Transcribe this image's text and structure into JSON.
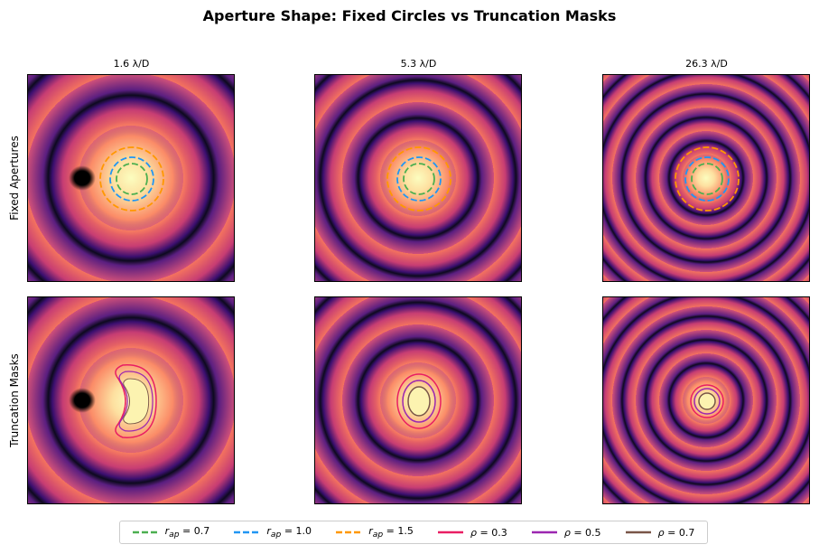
{
  "title": "Aperture Shape: Fixed Circles vs Truncation Masks",
  "columns": [
    "1.6 λ/D",
    "5.3 λ/D",
    "26.3 λ/D"
  ],
  "rows": [
    "Fixed Apertures",
    "Truncation Masks"
  ],
  "legend": [
    {
      "symbol": "r",
      "subscript": "ap",
      "text": "= 0.7",
      "color": "#4caf50",
      "style": "dashed"
    },
    {
      "symbol": "r",
      "subscript": "ap",
      "text": "= 1.0",
      "color": "#2196f3",
      "style": "dashed"
    },
    {
      "symbol": "r",
      "subscript": "ap",
      "text": "= 1.5",
      "color": "#ff9800",
      "style": "dashed"
    },
    {
      "symbol": "ρ",
      "text": "= 0.3",
      "color": "#e91e63",
      "style": "solid"
    },
    {
      "symbol": "ρ",
      "text": "= 0.5",
      "color": "#9c27b0",
      "style": "solid"
    },
    {
      "symbol": "ρ",
      "text": "= 0.7",
      "color": "#795548",
      "style": "solid"
    }
  ]
}
